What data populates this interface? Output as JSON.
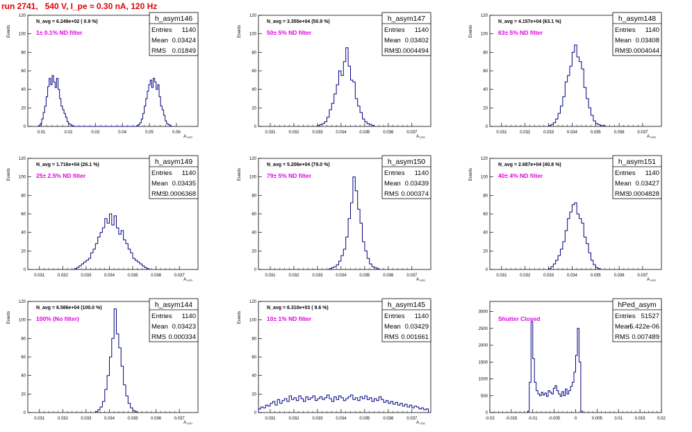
{
  "title": "run 2741,   540 V, I_pe ≈ 0.30 nA, 120 Hz",
  "colors": {
    "hist": "#000080",
    "magenta": "#e000e0",
    "title": "#e00000",
    "axis": "#000000"
  },
  "chart_data": [
    {
      "type": "histogram",
      "name": "h_asym146",
      "navg": "N_avg = 6.249e+02 ( 0.9 %)",
      "label": "1± 0.1% ND filter",
      "ylabel": "Events",
      "xlabel": "A_LED",
      "stats": {
        "Entries": "1140",
        "Mean": "0.03424",
        "RMS": "0.01849"
      },
      "xlim": [
        0.005,
        0.068
      ],
      "ylim": [
        0,
        120
      ],
      "xticks": [
        0.01,
        0.02,
        0.03,
        0.04,
        0.05,
        0.06
      ],
      "xticklabels": [
        "0.01",
        "0.02",
        "0.03",
        "0.04",
        "0.05",
        "0.06"
      ],
      "yticks": [
        0,
        20,
        40,
        60,
        80,
        100,
        120
      ],
      "bins": {
        "start": 0.0085,
        "width": 0.00055,
        "values": [
          0,
          1,
          3,
          8,
          15,
          22,
          32,
          43,
          52,
          45,
          55,
          48,
          42,
          52,
          40,
          30,
          22,
          18,
          14,
          10,
          5,
          3,
          2,
          1,
          0,
          0,
          0,
          0,
          0,
          0,
          0,
          0,
          0,
          0,
          0,
          0,
          0,
          0,
          0,
          0,
          0,
          0,
          0,
          0,
          0,
          0,
          0,
          0,
          0,
          0,
          0,
          0,
          0,
          0,
          0,
          0,
          0,
          0,
          0,
          0,
          0,
          0,
          0,
          0,
          0,
          0,
          0,
          1,
          2,
          4,
          8,
          14,
          22,
          30,
          38,
          45,
          50,
          42,
          52,
          48,
          40,
          45,
          32,
          22,
          18,
          12,
          6,
          3,
          2,
          1,
          0
        ]
      }
    },
    {
      "type": "histogram",
      "name": "h_asym147",
      "navg": "N_avg = 3.355e+04 (50.9 %)",
      "label": "50± 5% ND filter",
      "ylabel": "Events",
      "xlabel": "A_LED",
      "stats": {
        "Entries": "1140",
        "Mean": "0.03402",
        "RMS": "0.0004494"
      },
      "xlim": [
        0.0305,
        0.0378
      ],
      "ylim": [
        0,
        120
      ],
      "xticks": [
        0.031,
        0.032,
        0.033,
        0.034,
        0.035,
        0.036,
        0.037
      ],
      "xticklabels": [
        "0.031",
        "0.032",
        "0.033",
        "0.034",
        "0.035",
        "0.036",
        "0.037"
      ],
      "yticks": [
        0,
        20,
        40,
        60,
        80,
        100,
        120
      ],
      "bins": {
        "start": 0.033,
        "width": 0.0001,
        "values": [
          1,
          2,
          3,
          5,
          10,
          18,
          25,
          35,
          45,
          60,
          55,
          70,
          85,
          65,
          50,
          48,
          30,
          22,
          15,
          8,
          5,
          3,
          2,
          1
        ]
      }
    },
    {
      "type": "histogram",
      "name": "h_asym148",
      "navg": "N_avg = 4.157e+04 (63.1 %)",
      "label": "63± 5% ND filter",
      "ylabel": "Events",
      "xlabel": "A_LED",
      "stats": {
        "Entries": "1140",
        "Mean": "0.03408",
        "RMS": "0.0004044"
      },
      "xlim": [
        0.0305,
        0.0378
      ],
      "ylim": [
        0,
        120
      ],
      "xticks": [
        0.031,
        0.032,
        0.033,
        0.034,
        0.035,
        0.036,
        0.037
      ],
      "xticklabels": [
        "0.031",
        "0.032",
        "0.033",
        "0.034",
        "0.035",
        "0.036",
        "0.037"
      ],
      "yticks": [
        0,
        20,
        40,
        60,
        80,
        100,
        120
      ],
      "bins": {
        "start": 0.033,
        "width": 0.0001,
        "values": [
          1,
          2,
          4,
          8,
          14,
          22,
          32,
          48,
          55,
          65,
          80,
          88,
          75,
          70,
          62,
          42,
          30,
          20,
          12,
          6,
          3,
          2,
          1,
          1
        ]
      }
    },
    {
      "type": "histogram",
      "name": "h_asym149",
      "navg": "N_avg = 1.716e+04 (26.1 %)",
      "label": "25± 2.5% ND filter",
      "ylabel": "Events",
      "xlabel": "A_LED",
      "stats": {
        "Entries": "1140",
        "Mean": "0.03435",
        "RMS": "0.0006368"
      },
      "xlim": [
        0.0305,
        0.0378
      ],
      "ylim": [
        0,
        120
      ],
      "xticks": [
        0.031,
        0.032,
        0.033,
        0.034,
        0.035,
        0.036,
        0.037
      ],
      "xticklabels": [
        "0.031",
        "0.032",
        "0.033",
        "0.034",
        "0.035",
        "0.036",
        "0.037"
      ],
      "yticks": [
        0,
        20,
        40,
        60,
        80,
        100,
        120
      ],
      "bins": {
        "start": 0.0325,
        "width": 0.0001,
        "values": [
          1,
          2,
          4,
          6,
          8,
          10,
          12,
          18,
          22,
          28,
          35,
          40,
          45,
          55,
          50,
          60,
          48,
          58,
          45,
          38,
          42,
          32,
          28,
          22,
          18,
          12,
          10,
          8,
          6,
          4,
          2,
          1
        ]
      }
    },
    {
      "type": "histogram",
      "name": "h_asym150",
      "navg": "N_avg = 5.206e+04 (79.0 %)",
      "label": "79± 5% ND filter",
      "ylabel": "Events",
      "xlabel": "A_LED",
      "stats": {
        "Entries": "1140",
        "Mean": "0.03439",
        "RMS": "0.000374"
      },
      "xlim": [
        0.0305,
        0.0378
      ],
      "ylim": [
        0,
        120
      ],
      "xticks": [
        0.031,
        0.032,
        0.033,
        0.034,
        0.035,
        0.036,
        0.037
      ],
      "xticklabels": [
        "0.031",
        "0.032",
        "0.033",
        "0.034",
        "0.035",
        "0.036",
        "0.037"
      ],
      "yticks": [
        0,
        20,
        40,
        60,
        80,
        100,
        120
      ],
      "bins": {
        "start": 0.0335,
        "width": 0.0001,
        "values": [
          1,
          2,
          3,
          5,
          9,
          15,
          22,
          35,
          55,
          72,
          100,
          85,
          65,
          50,
          30,
          20,
          12,
          6,
          3,
          2,
          1
        ]
      }
    },
    {
      "type": "histogram",
      "name": "h_asym151",
      "navg": "N_avg = 2.687e+04 (40.8 %)",
      "label": "40± 4% ND filter",
      "ylabel": "Events",
      "xlabel": "A_LED",
      "stats": {
        "Entries": "1140",
        "Mean": "0.03427",
        "RMS": "0.0004828"
      },
      "xlim": [
        0.0305,
        0.0378
      ],
      "ylim": [
        0,
        120
      ],
      "xticks": [
        0.031,
        0.032,
        0.033,
        0.034,
        0.035,
        0.036,
        0.037
      ],
      "xticklabels": [
        "0.031",
        "0.032",
        "0.033",
        "0.034",
        "0.035",
        "0.036",
        "0.037"
      ],
      "yticks": [
        0,
        20,
        40,
        60,
        80,
        100,
        120
      ],
      "bins": {
        "start": 0.033,
        "width": 0.0001,
        "values": [
          1,
          3,
          6,
          10,
          15,
          22,
          30,
          42,
          55,
          62,
          70,
          72,
          60,
          55,
          50,
          35,
          28,
          18,
          10,
          5,
          2,
          1
        ]
      }
    },
    {
      "type": "histogram",
      "name": "h_asym144",
      "navg": "N_avg = 6.586e+04 (100.0 %)",
      "label": "100% (No filter)",
      "ylabel": "Events",
      "xlabel": "A_LED",
      "stats": {
        "Entries": "1140",
        "Mean": "0.03423",
        "RMS": "0.000334"
      },
      "xlim": [
        0.0305,
        0.0378
      ],
      "ylim": [
        0,
        120
      ],
      "xticks": [
        0.031,
        0.032,
        0.033,
        0.034,
        0.035,
        0.036,
        0.037
      ],
      "xticklabels": [
        "0.031",
        "0.032",
        "0.033",
        "0.034",
        "0.035",
        "0.036",
        "0.037"
      ],
      "yticks": [
        0,
        20,
        40,
        60,
        80,
        100,
        120
      ],
      "bins": {
        "start": 0.0334,
        "width": 0.0001,
        "values": [
          1,
          3,
          6,
          12,
          25,
          40,
          60,
          80,
          112,
          85,
          70,
          50,
          30,
          18,
          10,
          5,
          2,
          1
        ]
      }
    },
    {
      "type": "histogram",
      "name": "h_asym145",
      "navg": "N_avg = 6.310e+03 ( 9.6 %)",
      "label": "10± 1% ND filter",
      "ylabel": "Events",
      "xlabel": "A_LED",
      "stats": {
        "Entries": "1140",
        "Mean": "0.03429",
        "RMS": "0.001661"
      },
      "xlim": [
        0.0305,
        0.0378
      ],
      "ylim": [
        0,
        120
      ],
      "xticks": [
        0.031,
        0.032,
        0.033,
        0.034,
        0.035,
        0.036,
        0.037
      ],
      "xticklabels": [
        "0.031",
        "0.032",
        "0.033",
        "0.034",
        "0.035",
        "0.036",
        "0.037"
      ],
      "yticks": [
        0,
        20,
        40,
        60,
        80,
        100,
        120
      ],
      "bins": {
        "start": 0.0305,
        "width": 0.0001,
        "values": [
          4,
          6,
          5,
          8,
          7,
          10,
          12,
          8,
          14,
          10,
          13,
          15,
          12,
          18,
          14,
          16,
          13,
          18,
          15,
          12,
          17,
          14,
          16,
          18,
          13,
          15,
          17,
          14,
          16,
          19,
          15,
          12,
          17,
          14,
          18,
          16,
          13,
          15,
          17,
          19,
          14,
          16,
          13,
          17,
          15,
          18,
          14,
          16,
          12,
          15,
          13,
          17,
          14,
          11,
          13,
          10,
          12,
          9,
          11,
          8,
          10,
          7,
          9,
          6,
          8,
          5,
          7,
          6,
          4,
          5,
          3,
          4
        ]
      }
    },
    {
      "type": "histogram",
      "name": "hPed_asym",
      "navg": "",
      "label": "Shutter Closed",
      "ylabel": "",
      "xlabel": "",
      "stats": {
        "Entries": "51527",
        "Mean": "-5.422e-06",
        "RMS": "0.007489"
      },
      "xlim": [
        -0.02,
        0.02
      ],
      "ylim": [
        0,
        3300
      ],
      "xticks": [
        -0.02,
        -0.015,
        -0.01,
        -0.005,
        0,
        0.005,
        0.01,
        0.015,
        0.02
      ],
      "xticklabels": [
        "-0.02",
        "-0.015",
        "-0.01",
        "-0.005",
        "0",
        "0.005",
        "0.01",
        "0.015",
        "0.02"
      ],
      "yticks": [
        0,
        500,
        1000,
        1500,
        2000,
        2500,
        3000
      ],
      "bins": {
        "start": -0.0112,
        "width": 0.0004,
        "values": [
          40,
          900,
          2700,
          1600,
          900,
          650,
          550,
          500,
          600,
          520,
          580,
          480,
          650,
          600,
          550,
          720,
          800,
          650,
          550,
          480,
          620,
          500,
          700,
          550,
          650,
          780,
          900,
          1200,
          1700,
          2500,
          1500,
          40
        ]
      }
    }
  ]
}
